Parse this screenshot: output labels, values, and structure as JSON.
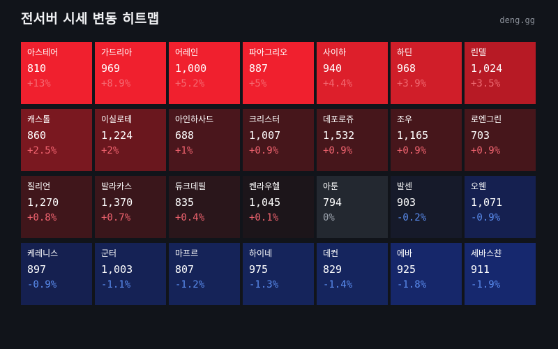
{
  "header": {
    "title": "전서버 시세 변동 히트맵",
    "site": "deng.gg"
  },
  "tiles": [
    {
      "name": "아스테어",
      "price": "810",
      "change": "+13%",
      "bg": "#f0202e",
      "change_color": "#f56b73"
    },
    {
      "name": "가드리아",
      "price": "969",
      "change": "+8.9%",
      "bg": "#f0202e",
      "change_color": "#f56b73"
    },
    {
      "name": "어레인",
      "price": "1,000",
      "change": "+5.2%",
      "bg": "#f0202e",
      "change_color": "#f56b73"
    },
    {
      "name": "파아그리오",
      "price": "887",
      "change": "+5%",
      "bg": "#f0202e",
      "change_color": "#f56b73"
    },
    {
      "name": "사이하",
      "price": "940",
      "change": "+4.4%",
      "bg": "#dd1f2b",
      "change_color": "#f36a72"
    },
    {
      "name": "하딘",
      "price": "968",
      "change": "+3.9%",
      "bg": "#d01e29",
      "change_color": "#f06a72"
    },
    {
      "name": "린델",
      "price": "1,024",
      "change": "+3.5%",
      "bg": "#b71a25",
      "change_color": "#ee6c73"
    },
    {
      "name": "캐스톨",
      "price": "860",
      "change": "+2.5%",
      "bg": "#7a1820",
      "change_color": "#f26470"
    },
    {
      "name": "이실로테",
      "price": "1,224",
      "change": "+2%",
      "bg": "#6a171e",
      "change_color": "#f26470"
    },
    {
      "name": "아인하사드",
      "price": "688",
      "change": "+1%",
      "bg": "#4a161c",
      "change_color": "#f26470"
    },
    {
      "name": "크리스터",
      "price": "1,007",
      "change": "+0.9%",
      "bg": "#46161b",
      "change_color": "#f26470"
    },
    {
      "name": "데포로쥬",
      "price": "1,532",
      "change": "+0.9%",
      "bg": "#46161b",
      "change_color": "#f26470"
    },
    {
      "name": "조우",
      "price": "1,165",
      "change": "+0.9%",
      "bg": "#46161b",
      "change_color": "#f26470"
    },
    {
      "name": "로엔그린",
      "price": "703",
      "change": "+0.9%",
      "bg": "#46161b",
      "change_color": "#f26470"
    },
    {
      "name": "질리언",
      "price": "1,270",
      "change": "+0.8%",
      "bg": "#40161b",
      "change_color": "#f26470"
    },
    {
      "name": "발라카스",
      "price": "1,370",
      "change": "+0.7%",
      "bg": "#3a161b",
      "change_color": "#f26470"
    },
    {
      "name": "듀크데필",
      "price": "835",
      "change": "+0.4%",
      "bg": "#2a161b",
      "change_color": "#f26470"
    },
    {
      "name": "켄라우헬",
      "price": "1,045",
      "change": "+0.1%",
      "bg": "#1c151a",
      "change_color": "#f26470"
    },
    {
      "name": "아툰",
      "price": "794",
      "change": "0%",
      "bg": "#232830",
      "change_color": "#9ca3ad"
    },
    {
      "name": "발센",
      "price": "903",
      "change": "-0.2%",
      "bg": "#161a2a",
      "change_color": "#5b8df0"
    },
    {
      "name": "오웬",
      "price": "1,071",
      "change": "-0.9%",
      "bg": "#152050",
      "change_color": "#5b8df0"
    },
    {
      "name": "케레니스",
      "price": "897",
      "change": "-0.9%",
      "bg": "#152050",
      "change_color": "#5b8df0"
    },
    {
      "name": "군터",
      "price": "1,003",
      "change": "-1.1%",
      "bg": "#152255",
      "change_color": "#5b8df0"
    },
    {
      "name": "마프르",
      "price": "807",
      "change": "-1.2%",
      "bg": "#152358",
      "change_color": "#5b8df0"
    },
    {
      "name": "하이네",
      "price": "975",
      "change": "-1.3%",
      "bg": "#15245b",
      "change_color": "#5b8df0"
    },
    {
      "name": "데컨",
      "price": "829",
      "change": "-1.4%",
      "bg": "#15255e",
      "change_color": "#5b8df0"
    },
    {
      "name": "에바",
      "price": "925",
      "change": "-1.8%",
      "bg": "#16276a",
      "change_color": "#5b8df0"
    },
    {
      "name": "세바스챤",
      "price": "911",
      "change": "-1.9%",
      "bg": "#16286e",
      "change_color": "#5b8df0"
    }
  ]
}
